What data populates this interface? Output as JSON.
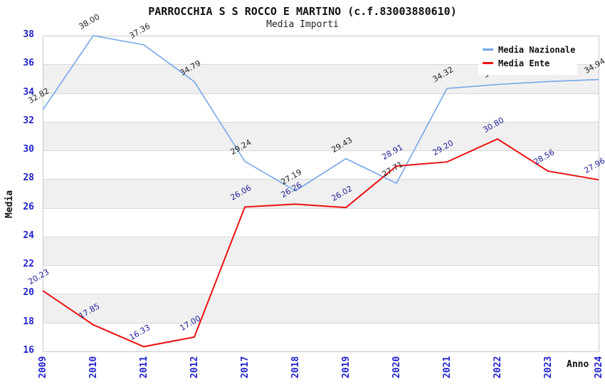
{
  "header": {
    "title": "PARROCCHIA S S ROCCO E MARTINO (c.f.83003880610)",
    "subtitle": "Media Importi"
  },
  "colors": {
    "tick_label": "#2222cc",
    "band_gray": "#f0f0f0",
    "band_white": "#ffffff",
    "gridline": "#d8d8d8",
    "plot_border": "#c9c9c9",
    "national_line": "#74a7e8",
    "ente_line": "#ee1111",
    "national_point_label": "#222222",
    "ente_point_label": "#222299"
  },
  "chart_data": {
    "type": "line",
    "title": "PARROCCHIA S S ROCCO E MARTINO (c.f.83003880610)",
    "subtitle": "Media Importi",
    "xlabel": "Anno",
    "ylabel": "Media",
    "ylim": [
      16,
      38
    ],
    "y_ticks": [
      38,
      36,
      34,
      32,
      30,
      28,
      26,
      24,
      22,
      20,
      18,
      16
    ],
    "grid": true,
    "background_bands": "alternating white/gray every 2 units",
    "legend_position": "top-right",
    "categories": [
      "2009",
      "2010",
      "2011",
      "2012",
      "2017",
      "2018",
      "2019",
      "2020",
      "2021",
      "2022",
      "2023",
      "2024"
    ],
    "series": [
      {
        "name": "Media Nazionale",
        "color": "#74a7e8",
        "label_color": "#222222",
        "values": [
          32.82,
          38.0,
          37.36,
          34.79,
          29.24,
          27.19,
          29.43,
          27.71,
          34.32,
          34.6,
          34.8,
          34.94
        ],
        "point_labels": [
          "32.82",
          "38.00",
          "37.36",
          "34.79",
          "29.24",
          "27.19",
          "29.43",
          "27.71",
          "34.32",
          "34.60",
          "34.80",
          "34.94"
        ]
      },
      {
        "name": "Media Ente",
        "color": "#ee1111",
        "label_color": "#222299",
        "values": [
          20.23,
          17.85,
          16.33,
          17.0,
          26.06,
          26.26,
          26.02,
          28.91,
          29.2,
          30.8,
          28.56,
          27.96
        ],
        "point_labels": [
          "20.23",
          "17.85",
          "16.33",
          "17.00",
          "26.06",
          "26.26",
          "26.02",
          "28.91",
          "29.20",
          "30.80",
          "28.56",
          "27.96"
        ]
      }
    ]
  }
}
